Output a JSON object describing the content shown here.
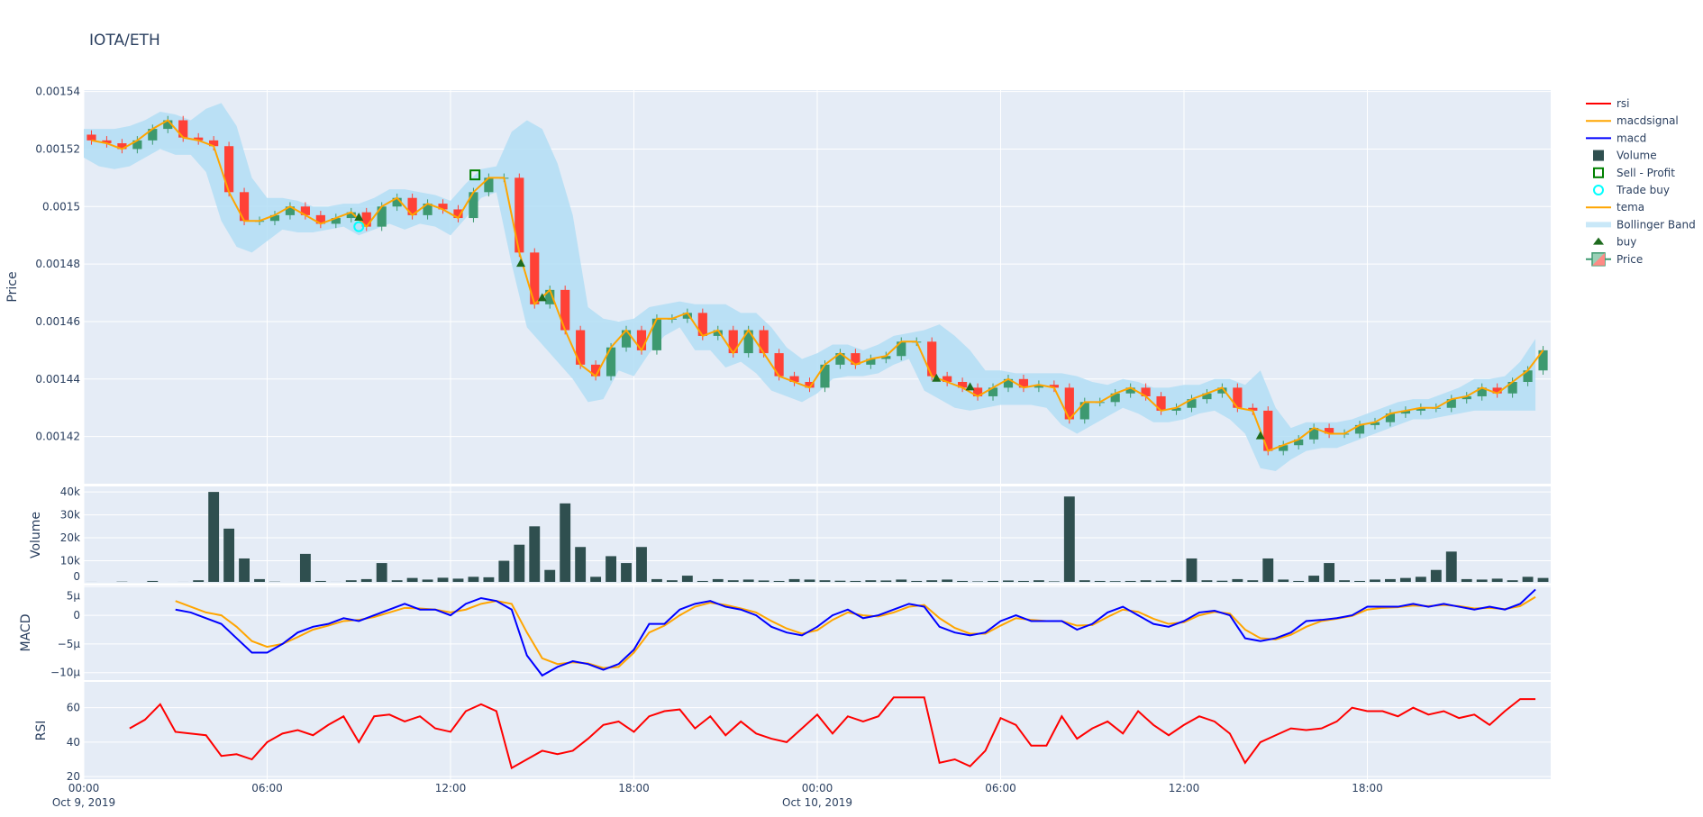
{
  "title": "IOTA/ETH",
  "colors": {
    "increasing": "#3D9970",
    "decreasing": "#FF4136",
    "tema": "#FFA500",
    "bollinger": "#B3DEF5",
    "volume": "#2F4F4F",
    "macd": "#0000FF",
    "macdsignal": "#FFA500",
    "rsi": "#FF0000",
    "buy": "#1E6B1E",
    "sell_profit": "#008000",
    "trade_buy": "#00FFFF",
    "plot_bg": "#E5ECF6"
  },
  "legend": [
    "rsi",
    "macdsignal",
    "macd",
    "Volume",
    "Sell - Profit",
    "Trade buy",
    "tema",
    "Bollinger Band",
    "buy",
    "Price"
  ],
  "chart_data": {
    "type": "candlestick",
    "x_start": "2019-10-09 00:00",
    "x_interval": "30min",
    "x_range": [
      "2019-10-09 00:00",
      "2019-10-11 00:00"
    ],
    "x_ticks": [
      {
        "h": 0,
        "l1": "00:00",
        "l2": "Oct 9, 2019"
      },
      {
        "h": 6,
        "l1": "06:00",
        "l2": ""
      },
      {
        "h": 12,
        "l1": "12:00",
        "l2": ""
      },
      {
        "h": 18,
        "l1": "18:00",
        "l2": ""
      },
      {
        "h": 24,
        "l1": "00:00",
        "l2": "Oct 10, 2019"
      },
      {
        "h": 30,
        "l1": "06:00",
        "l2": ""
      },
      {
        "h": 36,
        "l1": "12:00",
        "l2": ""
      },
      {
        "h": 42,
        "l1": "18:00",
        "l2": ""
      }
    ],
    "price": {
      "ylabel": "Price",
      "ylim": [
        0.0014036,
        0.0015405
      ],
      "ticks": [
        "0.00142",
        "0.00144",
        "0.00146",
        "0.00148",
        "0.0015",
        "0.00152",
        "0.00154"
      ],
      "close": [
        0.001523,
        0.001522,
        0.00152,
        0.001523,
        0.001527,
        0.00153,
        0.001524,
        0.001523,
        0.001521,
        0.001505,
        0.001495,
        0.001495,
        0.001497,
        0.0015,
        0.001497,
        0.001494,
        0.001496,
        0.001498,
        0.001493,
        0.0015,
        0.001503,
        0.001497,
        0.001501,
        0.001499,
        0.001496,
        0.001505,
        0.00151,
        0.00151,
        0.001484,
        0.001466,
        0.001471,
        0.001457,
        0.001445,
        0.001441,
        0.001451,
        0.001457,
        0.00145,
        0.001461,
        0.001461,
        0.001463,
        0.001455,
        0.001457,
        0.001449,
        0.001457,
        0.001449,
        0.001441,
        0.001439,
        0.001437,
        0.001445,
        0.001449,
        0.001445,
        0.001447,
        0.001448,
        0.001453,
        0.001453,
        0.001441,
        0.001439,
        0.001437,
        0.001434,
        0.001437,
        0.00144,
        0.001437,
        0.001438,
        0.001437,
        0.001426,
        0.001432,
        0.001432,
        0.001435,
        0.001437,
        0.001434,
        0.001429,
        0.00143,
        0.001433,
        0.001435,
        0.001437,
        0.00143,
        0.001429,
        0.001415,
        0.001417,
        0.001419,
        0.001423,
        0.001421,
        0.001421,
        0.001424,
        0.001425,
        0.001428,
        0.001429,
        0.00143,
        0.00143,
        0.001433,
        0.001434,
        0.001437,
        0.001435,
        0.001439,
        0.001443,
        0.00145
      ],
      "bb_upper": [
        0.001527,
        0.001527,
        0.001527,
        0.001528,
        0.00153,
        0.001533,
        0.001532,
        0.00153,
        0.001534,
        0.001536,
        0.001528,
        0.00151,
        0.001503,
        0.001503,
        0.001502,
        0.0015,
        0.0015,
        0.001501,
        0.001501,
        0.001503,
        0.001506,
        0.001506,
        0.001505,
        0.001504,
        0.001502,
        0.001508,
        0.001513,
        0.001514,
        0.001526,
        0.00153,
        0.001527,
        0.001515,
        0.001497,
        0.001465,
        0.001461,
        0.00146,
        0.001461,
        0.001465,
        0.001466,
        0.001467,
        0.001466,
        0.001466,
        0.001466,
        0.001463,
        0.001463,
        0.001458,
        0.001451,
        0.001447,
        0.001449,
        0.001452,
        0.001452,
        0.00145,
        0.001452,
        0.001455,
        0.001456,
        0.001457,
        0.001459,
        0.001455,
        0.00145,
        0.001443,
        0.001443,
        0.001442,
        0.001442,
        0.001442,
        0.001442,
        0.001441,
        0.001439,
        0.001438,
        0.00144,
        0.001439,
        0.001437,
        0.001437,
        0.001438,
        0.001438,
        0.00144,
        0.00144,
        0.001438,
        0.001443,
        0.00143,
        0.001423,
        0.001425,
        0.001425,
        0.001425,
        0.001426,
        0.001428,
        0.00143,
        0.001432,
        0.001433,
        0.001433,
        0.001435,
        0.001437,
        0.00144,
        0.00144,
        0.001441,
        0.001446,
        0.001454
      ],
      "bb_lower": [
        0.001517,
        0.001514,
        0.001513,
        0.001514,
        0.001517,
        0.00152,
        0.001518,
        0.001518,
        0.001512,
        0.001495,
        0.001486,
        0.001484,
        0.001488,
        0.001492,
        0.001491,
        0.001491,
        0.001492,
        0.001493,
        0.00149,
        0.001492,
        0.001494,
        0.001492,
        0.001494,
        0.001493,
        0.00149,
        0.001496,
        0.001503,
        0.001505,
        0.00148,
        0.001458,
        0.001452,
        0.001446,
        0.00144,
        0.001432,
        0.001433,
        0.001443,
        0.001441,
        0.001449,
        0.001455,
        0.001458,
        0.00145,
        0.00145,
        0.001444,
        0.001446,
        0.001442,
        0.001436,
        0.001434,
        0.001432,
        0.001435,
        0.00144,
        0.001441,
        0.001441,
        0.001442,
        0.001445,
        0.001447,
        0.001436,
        0.001433,
        0.00143,
        0.001429,
        0.00143,
        0.001431,
        0.001431,
        0.001431,
        0.00143,
        0.001424,
        0.001421,
        0.001424,
        0.001427,
        0.00143,
        0.001428,
        0.001425,
        0.001425,
        0.001426,
        0.001428,
        0.001429,
        0.001426,
        0.001421,
        0.001409,
        0.001408,
        0.001412,
        0.001415,
        0.001416,
        0.001416,
        0.001418,
        0.00142,
        0.001422,
        0.001424,
        0.001426,
        0.001426,
        0.001427,
        0.001428,
        0.001429,
        0.001429,
        0.001429,
        0.001429,
        0.001429
      ],
      "buy": [
        [
          9.0,
          0.001496
        ],
        [
          14.3,
          0.00148
        ],
        [
          15.0,
          0.001468
        ],
        [
          27.9,
          0.00144
        ],
        [
          29.0,
          0.001437
        ],
        [
          38.5,
          0.00142
        ]
      ],
      "sell_profit": [
        [
          12.8,
          0.001511
        ]
      ],
      "trade_buy": [
        [
          9.0,
          0.001493
        ]
      ]
    },
    "volume": {
      "ylabel": "Volume",
      "ylim": [
        0,
        42400
      ],
      "ticks": [
        "0",
        "10k",
        "20k",
        "30k",
        "40k"
      ],
      "values": [
        800,
        600,
        900,
        500,
        1200,
        700,
        800,
        1500,
        40000,
        24000,
        11000,
        2000,
        900,
        700,
        13000,
        1200,
        800,
        1500,
        2000,
        9000,
        1500,
        2500,
        1800,
        2600,
        2200,
        3000,
        2800,
        10000,
        17000,
        25000,
        6000,
        35000,
        16000,
        3000,
        12000,
        9000,
        16000,
        2000,
        1500,
        3500,
        1200,
        2000,
        1500,
        1800,
        1400,
        1200,
        2000,
        1800,
        1500,
        1300,
        1200,
        1500,
        1400,
        1800,
        1200,
        1500,
        1800,
        1200,
        1000,
        1200,
        1400,
        1200,
        1500,
        1000,
        38000,
        1500,
        1200,
        1100,
        1200,
        1500,
        1300,
        1600,
        11000,
        1500,
        1300,
        2000,
        1500,
        11000,
        1800,
        1200,
        3500,
        9000,
        1500,
        1200,
        1800,
        2000,
        2500,
        3000,
        6000,
        14000,
        2000,
        1800,
        2200,
        1500,
        3000,
        2500
      ]
    },
    "macd": {
      "ylabel": "MACD",
      "ylim": [
        -11.3,
        5.2
      ],
      "units": "µ",
      "ticks": [
        "−10µ",
        "−5µ",
        "0",
        "5µ"
      ],
      "macd": [
        null,
        null,
        null,
        null,
        null,
        null,
        1,
        0.5,
        -0.5,
        -1.5,
        -4,
        -6.5,
        -6.5,
        -5,
        -3,
        -2,
        -1.5,
        -0.5,
        -1,
        0,
        1,
        2,
        1,
        1,
        0,
        2,
        3,
        2.5,
        1,
        -7,
        -10.5,
        -9,
        -8,
        -8.5,
        -9.5,
        -8.5,
        -6,
        -1.5,
        -1.5,
        1,
        2,
        2.5,
        1.5,
        1,
        0,
        -2,
        -3,
        -3.5,
        -2,
        0,
        1,
        -0.5,
        0,
        1,
        2,
        1.5,
        -2,
        -3,
        -3.5,
        -3,
        -1,
        0,
        -1,
        -1,
        -1,
        -2.5,
        -1.5,
        0.5,
        1.5,
        0,
        -1.5,
        -2,
        -1,
        0.5,
        0.8,
        0,
        -4,
        -4.5,
        -4,
        -3,
        -1,
        -0.8,
        -0.5,
        0,
        1.5,
        1.5,
        1.5,
        2,
        1.5,
        2,
        1.5,
        1,
        1.5,
        1,
        2,
        4.5
      ],
      "macdsignal": [
        null,
        null,
        null,
        null,
        null,
        null,
        2.5,
        1.5,
        0.5,
        0,
        -2,
        -4.5,
        -5.5,
        -5,
        -3.8,
        -2.5,
        -1.8,
        -1,
        -0.8,
        -0.3,
        0.5,
        1.3,
        1.2,
        1,
        0.5,
        1,
        2,
        2.5,
        2,
        -3,
        -7.5,
        -8.5,
        -8.2,
        -8.4,
        -9.2,
        -9,
        -6.5,
        -3,
        -1.8,
        0,
        1.5,
        2.2,
        1.8,
        1.2,
        0.5,
        -1,
        -2.3,
        -3.2,
        -2.6,
        -0.8,
        0.5,
        0,
        -0.2,
        0.5,
        1.5,
        1.8,
        -0.5,
        -2.2,
        -3.2,
        -3.2,
        -1.8,
        -0.5,
        -0.8,
        -1,
        -1,
        -1.8,
        -1.7,
        -0.3,
        1,
        0.6,
        -0.6,
        -1.5,
        -1.2,
        0,
        0.6,
        0.3,
        -2.5,
        -4,
        -4.2,
        -3.4,
        -2,
        -1,
        -0.6,
        -0.1,
        1,
        1.3,
        1.4,
        1.7,
        1.6,
        1.8,
        1.6,
        1.2,
        1.3,
        1.1,
        1.6,
        3.2
      ]
    },
    "rsi": {
      "ylabel": "RSI",
      "ylim": [
        18.5,
        75
      ],
      "ticks": [
        "20",
        "40",
        "60"
      ],
      "values": [
        null,
        null,
        null,
        48,
        53,
        62,
        46,
        45,
        44,
        32,
        33,
        30,
        40,
        45,
        47,
        44,
        50,
        55,
        40,
        55,
        56,
        52,
        55,
        48,
        46,
        58,
        62,
        58,
        25,
        30,
        35,
        33,
        35,
        42,
        50,
        52,
        46,
        55,
        58,
        59,
        48,
        55,
        44,
        52,
        45,
        42,
        40,
        48,
        56,
        45,
        55,
        52,
        55,
        66,
        66,
        66,
        28,
        30,
        26,
        35,
        54,
        50,
        38,
        38,
        55,
        42,
        48,
        52,
        45,
        58,
        50,
        44,
        50,
        55,
        52,
        45,
        28,
        40,
        44,
        48,
        47,
        48,
        52,
        60,
        58,
        58,
        55,
        60,
        56,
        58,
        54,
        56,
        50,
        58,
        65,
        65
      ]
    }
  }
}
